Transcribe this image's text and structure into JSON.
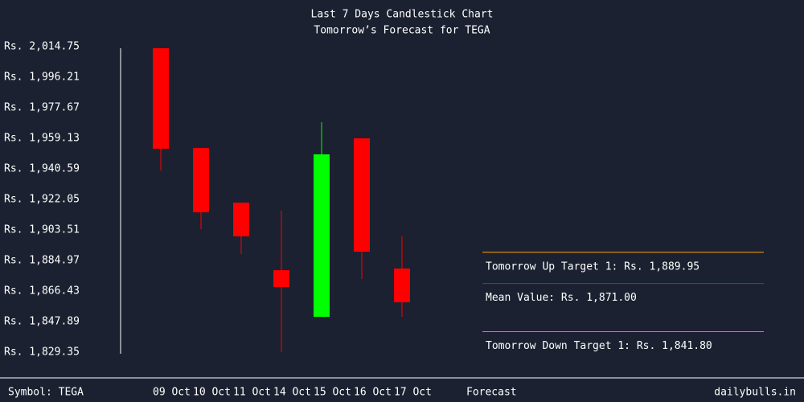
{
  "chart_data": {
    "type": "candlestick",
    "title": "Last 7 Days Candlestick Chart",
    "subtitle": "Tomorrow’s Forecast for TEGA",
    "categories": [
      "09 Oct",
      "10 Oct",
      "11 Oct",
      "14 Oct",
      "15 Oct",
      "16 Oct",
      "17 Oct"
    ],
    "open": [
      2013.8,
      1953.3,
      1920.1,
      1879.1,
      1850.8,
      1959.1,
      1880.1
    ],
    "high": [
      2013.8,
      1953.3,
      1920.1,
      1915.2,
      1968.9,
      1959.1,
      1899.6
    ],
    "low": [
      1939.6,
      1904.0,
      1888.9,
      1829.35,
      1850.8,
      1873.8,
      1850.8
    ],
    "close": [
      1952.8,
      1914.2,
      1899.6,
      1868.9,
      1949.4,
      1890.3,
      1859.6
    ],
    "up_color": "#00ff00",
    "down_color": "#ff0000",
    "ylim": [
      1829.35,
      2014.75
    ],
    "yticks": [
      {
        "value": 2014.75,
        "label": "Rs. 2,014.75"
      },
      {
        "value": 1996.21,
        "label": "Rs. 1,996.21"
      },
      {
        "value": 1977.67,
        "label": "Rs. 1,977.67"
      },
      {
        "value": 1959.13,
        "label": "Rs. 1,959.13"
      },
      {
        "value": 1940.59,
        "label": "Rs. 1,940.59"
      },
      {
        "value": 1922.05,
        "label": "Rs. 1,922.05"
      },
      {
        "value": 1903.51,
        "label": "Rs. 1,903.51"
      },
      {
        "value": 1884.97,
        "label": "Rs. 1,884.97"
      },
      {
        "value": 1866.43,
        "label": "Rs. 1,866.43"
      },
      {
        "value": 1847.89,
        "label": "Rs. 1,847.89"
      },
      {
        "value": 1829.35,
        "label": "Rs. 1,829.35"
      }
    ],
    "forecast": [
      {
        "label": "Tomorrow Up Target 1: Rs. 1,889.95",
        "value": 1889.95,
        "color": "#ffa500"
      },
      {
        "label": "Mean Value: Rs. 1,871.00",
        "value": 1871.0,
        "color": "#ff0000"
      },
      {
        "label": "Tomorrow Down Target 1: Rs. 1,841.80",
        "value": 1841.8,
        "color": "#00ff00"
      }
    ],
    "forecast_label": "Forecast",
    "symbol": "Symbol: TEGA",
    "source": "dailybulls.in"
  }
}
